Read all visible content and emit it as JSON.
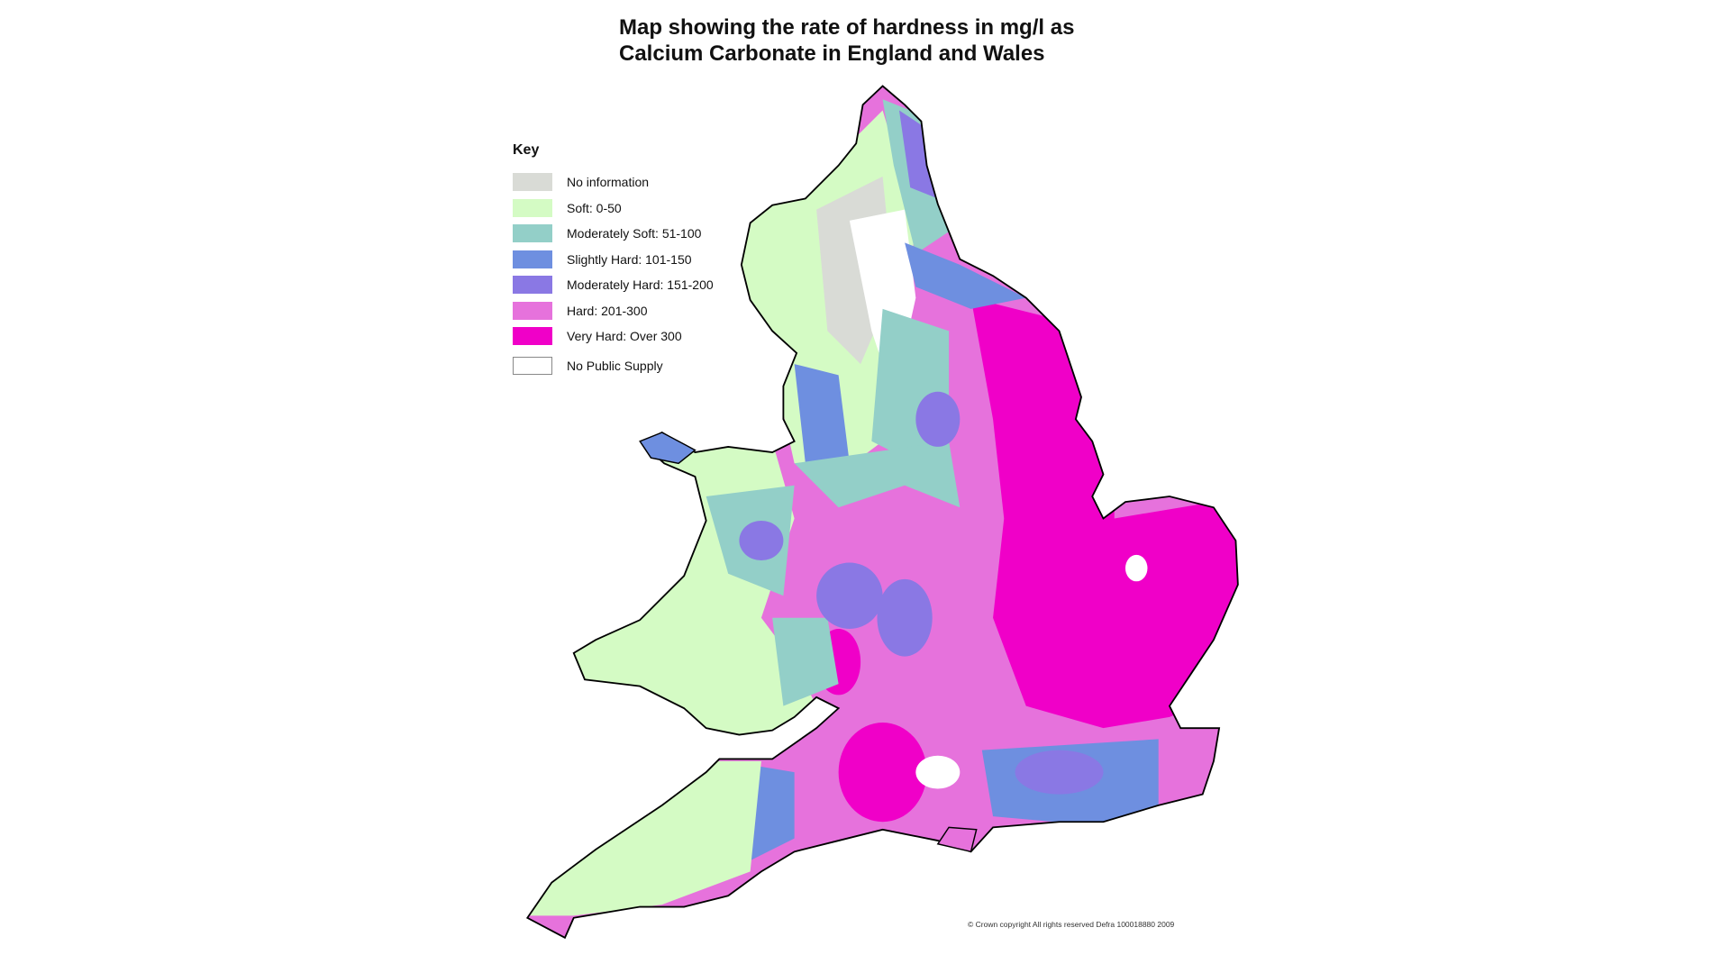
{
  "title_line1": "Map showing the rate of hardness in mg/l as",
  "title_line2": "Calcium Carbonate in England and Wales",
  "key": {
    "title": "Key",
    "items": [
      {
        "label": "No information",
        "color": "#d9dbd6"
      },
      {
        "label": "Soft: 0-50",
        "color": "#d4fbc4"
      },
      {
        "label": "Moderately Soft: 51-100",
        "color": "#93cfc8"
      },
      {
        "label": "Slightly Hard: 101-150",
        "color": "#6e8fe0"
      },
      {
        "label": "Moderately Hard: 151-200",
        "color": "#8a78e4"
      },
      {
        "label": "Hard: 201-300",
        "color": "#e672dc"
      },
      {
        "label": "Very Hard: Over 300",
        "color": "#f000c8"
      },
      {
        "label": "No Public Supply",
        "color": "#ffffff"
      }
    ]
  },
  "copyright": "© Crown copyright  All rights reserved Defra 100018880 2009"
}
